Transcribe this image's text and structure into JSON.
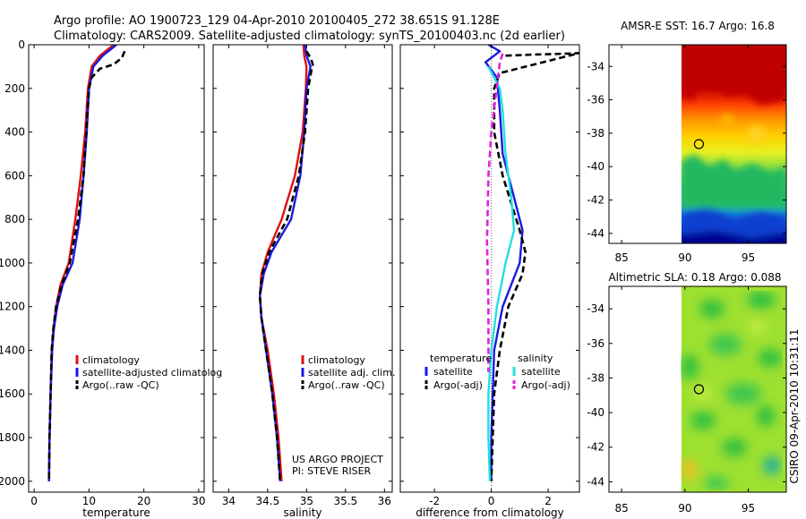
{
  "header": {
    "line1": "Argo profile: AO 1900723_129 04-Apr-2010 20100405_272 38.651S 91.128E",
    "line2": "Climatology: CARS2009. Satellite-adjusted climatology: synTS_20100403.nc (2d earlier)"
  },
  "side_label": "CSIRO 09-Apr-2010 10:31:11",
  "credit": {
    "line1": "US ARGO PROJECT",
    "line2": "PI: STEVE RISER"
  },
  "colors": {
    "climatology": "#e01010",
    "satellite": "#1a1ae0",
    "argo": "#000000",
    "sat_salinity": "#20e0e0",
    "argo_salinity": "#e020e0"
  },
  "chart_data": [
    {
      "type": "line",
      "xlabel": "temperature",
      "xlim": [
        -1,
        31
      ],
      "ylim": [
        2050,
        0
      ],
      "xticks": [
        0,
        10,
        20,
        30
      ],
      "yticks": [
        0,
        200,
        400,
        600,
        800,
        1000,
        1200,
        1400,
        1600,
        1800,
        2000
      ],
      "legend": [
        "climatology",
        "satellite-adjusted climatolog",
        "Argo(..raw -QC)"
      ],
      "series": [
        {
          "name": "climatology",
          "style": "solid",
          "color": "#e01010",
          "points": [
            [
              14.5,
              0
            ],
            [
              13.5,
              20
            ],
            [
              12.0,
              50
            ],
            [
              10.5,
              100
            ],
            [
              9.8,
              200
            ],
            [
              9.3,
              400
            ],
            [
              8.5,
              600
            ],
            [
              7.5,
              800
            ],
            [
              6.3,
              1000
            ],
            [
              4.8,
              1100
            ],
            [
              4.0,
              1200
            ],
            [
              3.5,
              1300
            ],
            [
              3.2,
              1400
            ],
            [
              3.0,
              1600
            ],
            [
              2.8,
              1800
            ],
            [
              2.7,
              2000
            ]
          ]
        },
        {
          "name": "satellite-adjusted climatolog",
          "style": "solid",
          "color": "#1a1ae0",
          "points": [
            [
              15.0,
              0
            ],
            [
              14.0,
              20
            ],
            [
              12.5,
              50
            ],
            [
              10.8,
              100
            ],
            [
              10.0,
              200
            ],
            [
              9.6,
              400
            ],
            [
              9.0,
              600
            ],
            [
              8.3,
              800
            ],
            [
              7.0,
              1000
            ],
            [
              5.2,
              1100
            ],
            [
              4.2,
              1200
            ],
            [
              3.6,
              1300
            ],
            [
              3.3,
              1400
            ],
            [
              3.0,
              1600
            ],
            [
              2.8,
              1800
            ],
            [
              2.7,
              2000
            ]
          ]
        },
        {
          "name": "Argo(..raw -QC)",
          "style": "dash",
          "color": "#000000",
          "points": [
            [
              16.5,
              30
            ],
            [
              16.0,
              60
            ],
            [
              14.5,
              90
            ],
            [
              12.0,
              110
            ],
            [
              10.5,
              150
            ],
            [
              10.0,
              200
            ],
            [
              9.5,
              400
            ],
            [
              9.0,
              600
            ],
            [
              8.0,
              800
            ],
            [
              6.5,
              1000
            ],
            [
              5.0,
              1100
            ],
            [
              4.0,
              1200
            ],
            [
              3.5,
              1300
            ],
            [
              3.2,
              1400
            ],
            [
              3.0,
              1600
            ],
            [
              2.8,
              1800
            ],
            [
              2.7,
              2000
            ]
          ]
        }
      ]
    },
    {
      "type": "line",
      "xlabel": "salinity",
      "xlim": [
        33.8,
        36.1
      ],
      "ylim": [
        2050,
        0
      ],
      "xticks": [
        34,
        34.5,
        35,
        35.5,
        36
      ],
      "yticks": [
        0,
        200,
        400,
        600,
        800,
        1000,
        1200,
        1400,
        1600,
        1800,
        2000
      ],
      "legend": [
        "climatology",
        "satellite adj. clim.",
        "Argo(..raw -QC)"
      ],
      "series": [
        {
          "name": "climatology",
          "style": "solid",
          "color": "#e01010",
          "points": [
            [
              34.96,
              0
            ],
            [
              34.97,
              50
            ],
            [
              35.0,
              100
            ],
            [
              34.99,
              200
            ],
            [
              34.95,
              400
            ],
            [
              34.85,
              600
            ],
            [
              34.68,
              800
            ],
            [
              34.5,
              950
            ],
            [
              34.42,
              1050
            ],
            [
              34.4,
              1150
            ],
            [
              34.42,
              1250
            ],
            [
              34.5,
              1400
            ],
            [
              34.58,
              1600
            ],
            [
              34.64,
              1800
            ],
            [
              34.68,
              2000
            ]
          ]
        },
        {
          "name": "satellite adj. clim.",
          "style": "solid",
          "color": "#1a1ae0",
          "points": [
            [
              34.98,
              0
            ],
            [
              35.0,
              50
            ],
            [
              35.05,
              100
            ],
            [
              35.0,
              200
            ],
            [
              34.97,
              400
            ],
            [
              34.92,
              600
            ],
            [
              34.8,
              800
            ],
            [
              34.55,
              950
            ],
            [
              34.45,
              1050
            ],
            [
              34.4,
              1150
            ],
            [
              34.42,
              1250
            ],
            [
              34.48,
              1400
            ],
            [
              34.56,
              1600
            ],
            [
              34.62,
              1800
            ],
            [
              34.66,
              2000
            ]
          ]
        },
        {
          "name": "Argo(..raw -QC)",
          "style": "dash",
          "color": "#000000",
          "points": [
            [
              35.0,
              30
            ],
            [
              35.05,
              60
            ],
            [
              35.08,
              90
            ],
            [
              35.06,
              120
            ],
            [
              35.02,
              200
            ],
            [
              34.98,
              400
            ],
            [
              34.9,
              600
            ],
            [
              34.75,
              800
            ],
            [
              34.52,
              950
            ],
            [
              34.43,
              1050
            ],
            [
              34.4,
              1150
            ],
            [
              34.42,
              1250
            ],
            [
              34.48,
              1400
            ],
            [
              34.56,
              1600
            ],
            [
              34.62,
              1800
            ],
            [
              34.66,
              2000
            ]
          ]
        }
      ]
    },
    {
      "type": "line",
      "xlabel": "difference from climatology",
      "xlim": [
        -3.2,
        3.1
      ],
      "ylim": [
        2050,
        0
      ],
      "xticks": [
        -2,
        0,
        2
      ],
      "yticks": [
        0,
        200,
        400,
        600,
        800,
        1000,
        1200,
        1400,
        1600,
        1800,
        2000
      ],
      "legend_groups": [
        {
          "title": "temperature",
          "entries": [
            "satellite",
            "Argo(-adj)"
          ]
        },
        {
          "title": "salinity",
          "entries": [
            "satellite",
            "Argo(-adj)"
          ]
        }
      ],
      "series": [
        {
          "name": "satellite",
          "group": "temperature",
          "style": "solid",
          "color": "#1a1ae0",
          "points": [
            [
              -0.1,
              0
            ],
            [
              0.3,
              30
            ],
            [
              -0.2,
              80
            ],
            [
              0.2,
              150
            ],
            [
              0.3,
              300
            ],
            [
              0.4,
              500
            ],
            [
              0.8,
              700
            ],
            [
              1.1,
              850
            ],
            [
              1.0,
              1000
            ],
            [
              0.7,
              1100
            ],
            [
              0.4,
              1200
            ],
            [
              0.1,
              1400
            ],
            [
              0.05,
              1600
            ],
            [
              0.0,
              1800
            ],
            [
              0.0,
              2000
            ]
          ]
        },
        {
          "name": "Argo(-adj)",
          "group": "temperature",
          "style": "dash",
          "color": "#000000",
          "points": [
            [
              0.5,
              50
            ],
            [
              1.5,
              45
            ],
            [
              2.8,
              40
            ],
            [
              3.1,
              38
            ],
            [
              0.3,
              130
            ],
            [
              0.1,
              200
            ],
            [
              0.1,
              400
            ],
            [
              0.4,
              600
            ],
            [
              1.0,
              850
            ],
            [
              1.2,
              950
            ],
            [
              1.1,
              1050
            ],
            [
              0.6,
              1200
            ],
            [
              0.3,
              1400
            ],
            [
              0.1,
              1600
            ],
            [
              0.05,
              1800
            ],
            [
              0.0,
              2000
            ]
          ]
        },
        {
          "name": "satellite",
          "group": "salinity",
          "style": "solid",
          "color": "#20e0e0",
          "points": [
            [
              -0.1,
              100
            ],
            [
              0.3,
              200
            ],
            [
              0.4,
              300
            ],
            [
              0.5,
              500
            ],
            [
              0.7,
              700
            ],
            [
              0.8,
              850
            ],
            [
              0.5,
              1000
            ],
            [
              0.2,
              1200
            ],
            [
              0.0,
              1400
            ],
            [
              -0.1,
              1600
            ],
            [
              -0.1,
              1800
            ],
            [
              -0.05,
              2000
            ]
          ]
        },
        {
          "name": "Argo(-adj)",
          "group": "salinity",
          "style": "dash",
          "color": "#e020e0",
          "points": [
            [
              0.4,
              40
            ],
            [
              0.3,
              80
            ],
            [
              0.0,
              400
            ],
            [
              -0.1,
              600
            ],
            [
              -0.15,
              900
            ],
            [
              -0.1,
              1200
            ],
            [
              -0.1,
              1500
            ]
          ]
        }
      ]
    },
    {
      "type": "heatmap",
      "title": "AMSR-E SST: 16.7 Argo: 16.8",
      "xlim": [
        84,
        98
      ],
      "ylim": [
        -44.6,
        -32.7
      ],
      "xticks": [
        85,
        90,
        95
      ],
      "yticks": [
        -34,
        -36,
        -38,
        -40,
        -42,
        -44
      ],
      "data_region_lon": [
        90,
        98
      ],
      "marker": {
        "lon": 91.1,
        "lat": -38.65
      }
    },
    {
      "type": "heatmap",
      "title": "Altimetric SLA: 0.18 Argo: 0.088",
      "xlim": [
        84,
        98
      ],
      "ylim": [
        -44.6,
        -32.7
      ],
      "xticks": [
        85,
        90,
        95
      ],
      "yticks": [
        -34,
        -36,
        -38,
        -40,
        -42,
        -44
      ],
      "data_region_lon": [
        90,
        98
      ],
      "marker": {
        "lon": 91.1,
        "lat": -38.65
      }
    }
  ]
}
